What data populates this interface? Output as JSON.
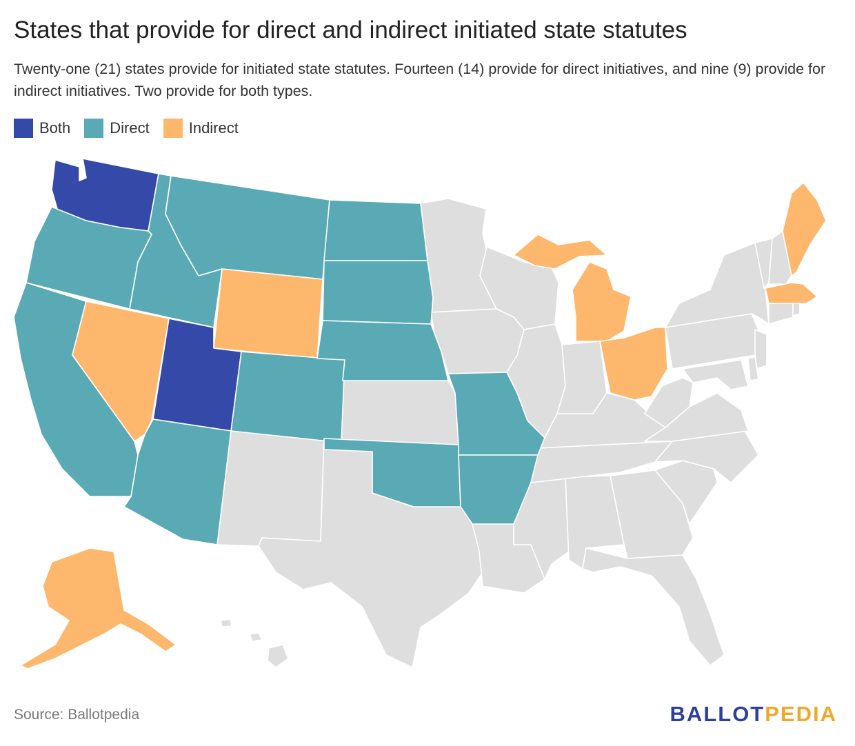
{
  "title": "States that provide for direct and indirect initiated state statutes",
  "subtitle": "Twenty-one (21) states provide for initiated state statutes. Fourteen (14) provide for direct initiatives, and nine (9) provide for indirect initiatives. Two provide for both types.",
  "legend": [
    {
      "label": "Both",
      "color": "#3549a8"
    },
    {
      "label": "Direct",
      "color": "#5aaab6"
    },
    {
      "label": "Indirect",
      "color": "#fdb86e"
    }
  ],
  "colors": {
    "none": "#dedede",
    "both": "#3549a8",
    "direct": "#5aaab6",
    "indirect": "#fdb86e"
  },
  "states": {
    "both": [
      "Washington",
      "Utah"
    ],
    "direct": [
      "Oregon",
      "California",
      "Idaho",
      "Montana",
      "North Dakota",
      "South Dakota",
      "Nebraska",
      "Colorado",
      "Arizona",
      "Oklahoma",
      "Missouri",
      "Arkansas"
    ],
    "indirect": [
      "Alaska",
      "Nevada",
      "Wyoming",
      "Michigan",
      "Ohio",
      "Maine",
      "Massachusetts"
    ]
  },
  "source": "Source: Ballotpedia",
  "brand": {
    "part1": "BALLOT",
    "part2": "PEDIA"
  }
}
